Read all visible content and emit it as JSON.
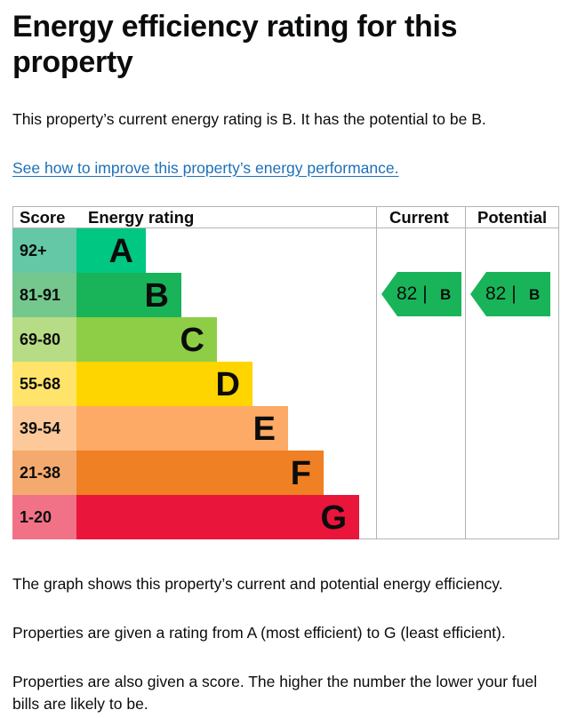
{
  "page": {
    "title": "Energy efficiency rating for this property",
    "intro": "This property’s current energy rating is B. It has the potential to be B.",
    "improve_link": "See how to improve this property’s energy performance.",
    "graph_note": "The graph shows this property’s current and potential energy efficiency.",
    "rating_note": "Properties are given a rating from A (most efficient) to G (least efficient).",
    "score_note": "Properties are also given a score. The higher the number the lower your fuel bills are likely to be."
  },
  "chart_data": {
    "type": "table",
    "headers": {
      "score": "Score",
      "rating": "Energy rating",
      "current": "Current",
      "potential": "Potential"
    },
    "bands": [
      {
        "score": "92+",
        "letter": "A",
        "color": "#00c781",
        "score_bg": "#64c7a6"
      },
      {
        "score": "81-91",
        "letter": "B",
        "color": "#19b459",
        "score_bg": "#75c88d"
      },
      {
        "score": "69-80",
        "letter": "C",
        "color": "#8dce46",
        "score_bg": "#b6dc85"
      },
      {
        "score": "55-68",
        "letter": "D",
        "color": "#ffd500",
        "score_bg": "#ffe36b"
      },
      {
        "score": "39-54",
        "letter": "E",
        "color": "#fcaa65",
        "score_bg": "#fdc99a"
      },
      {
        "score": "21-38",
        "letter": "F",
        "color": "#ef8023",
        "score_bg": "#f4aa6f"
      },
      {
        "score": "1-20",
        "letter": "G",
        "color": "#e9153b",
        "score_bg": "#f17287"
      }
    ],
    "current": {
      "value": 82,
      "grade": "B",
      "separator": "|",
      "color": "#19b459"
    },
    "potential": {
      "value": 82,
      "grade": "B",
      "separator": "|",
      "color": "#19b459"
    }
  }
}
